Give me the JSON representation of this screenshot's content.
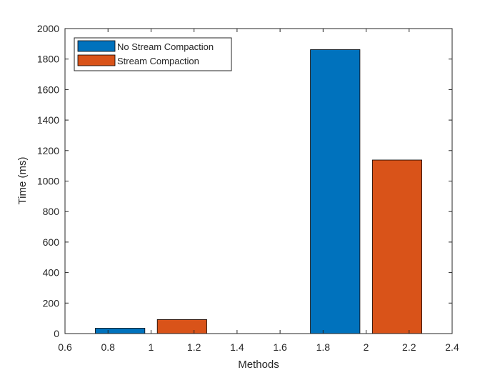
{
  "chart_data": {
    "type": "bar",
    "title": "",
    "xlabel": "Methods",
    "ylabel": "Time (ms)",
    "xlim": [
      0.6,
      2.4
    ],
    "ylim": [
      0,
      2000
    ],
    "x_ticks": [
      "0.6",
      "0.8",
      "1",
      "1.2",
      "1.4",
      "1.6",
      "1.8",
      "2",
      "2.2",
      "2.4"
    ],
    "y_ticks": [
      "0",
      "200",
      "400",
      "600",
      "800",
      "1000",
      "1200",
      "1400",
      "1600",
      "1800",
      "2000"
    ],
    "grid": false,
    "legend_position": "top-left",
    "series": [
      {
        "name": "No Stream Compaction",
        "color": "#0072BD",
        "bars": [
          {
            "x": 0.856,
            "value": 35
          },
          {
            "x": 1.856,
            "value": 1862
          }
        ]
      },
      {
        "name": "Stream Compaction",
        "color": "#D95319",
        "bars": [
          {
            "x": 1.144,
            "value": 92
          },
          {
            "x": 2.144,
            "value": 1138
          }
        ]
      }
    ]
  }
}
